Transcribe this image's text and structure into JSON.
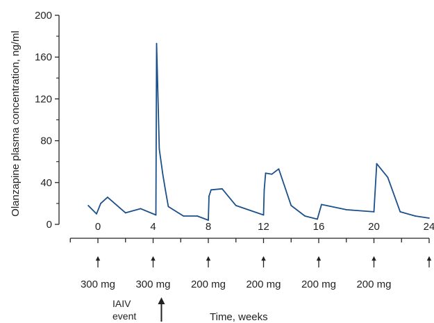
{
  "chart_data": {
    "type": "line",
    "title": "",
    "ylabel": "Olanzapine plasma concentration, ng/ml",
    "xlabel": "Time, weeks",
    "xlim": [
      -2,
      24
    ],
    "ylim": [
      0,
      200
    ],
    "x_ticks": [
      0,
      4,
      8,
      12,
      16,
      20,
      24
    ],
    "x_tick_labels": [
      "0",
      "4",
      "8",
      "12",
      "16",
      "20",
      "24"
    ],
    "y_ticks": [
      0,
      40,
      80,
      120,
      160,
      200
    ],
    "y_tick_labels": [
      "0",
      "40",
      "80",
      "120",
      "160",
      "200"
    ],
    "grid": false,
    "line_color": "#1a4f8a",
    "series": [
      {
        "points": [
          [
            -0.7,
            18
          ],
          [
            -0.1,
            10
          ],
          [
            0.2,
            20
          ],
          [
            0.7,
            26
          ],
          [
            2.0,
            11
          ],
          [
            3.1,
            15
          ],
          [
            4.2,
            9
          ],
          [
            4.25,
            173
          ],
          [
            4.45,
            72
          ],
          [
            4.7,
            48
          ],
          [
            4.9,
            32
          ],
          [
            5.1,
            17
          ],
          [
            6.2,
            8
          ],
          [
            7.2,
            8
          ],
          [
            8.0,
            4
          ],
          [
            8.05,
            27
          ],
          [
            8.2,
            33
          ],
          [
            9.0,
            34
          ],
          [
            10.0,
            18
          ],
          [
            12.0,
            9
          ],
          [
            12.05,
            33
          ],
          [
            12.15,
            49
          ],
          [
            12.6,
            48
          ],
          [
            13.1,
            53
          ],
          [
            14.0,
            18
          ],
          [
            15.0,
            8
          ],
          [
            15.9,
            5
          ],
          [
            16.2,
            19
          ],
          [
            18.0,
            14
          ],
          [
            20.0,
            12
          ],
          [
            20.2,
            58
          ],
          [
            21.0,
            45
          ],
          [
            21.9,
            12
          ],
          [
            23.0,
            8
          ],
          [
            24.0,
            6
          ]
        ]
      }
    ],
    "dose_labels": [
      "300 mg",
      "300 mg",
      "200 mg",
      "200 mg",
      "200 mg",
      "200 mg"
    ],
    "injection_weeks": [
      0,
      4,
      8,
      12,
      16,
      20,
      24
    ],
    "event": {
      "week": 4.3,
      "label_line1": "IAIV",
      "label_line2": "event"
    }
  }
}
